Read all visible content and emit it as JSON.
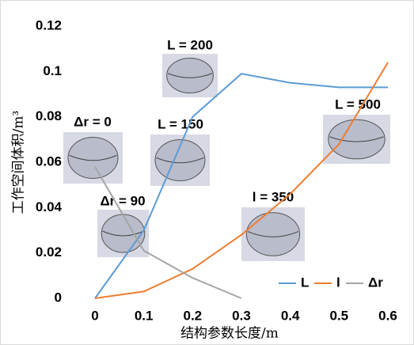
{
  "chart_data": {
    "type": "line",
    "x_label": "结构参数长度/m",
    "y_label": "工作空间体积/m³",
    "x": [
      0,
      0.1,
      0.2,
      0.3,
      0.4,
      0.5,
      0.6
    ],
    "series": [
      {
        "name": "L",
        "color": "#5b9bd5",
        "values": [
          0,
          0.03,
          0.08,
          0.099,
          0.095,
          0.093,
          0.093
        ]
      },
      {
        "name": "l",
        "color": "#ed7d31",
        "values": [
          0,
          0.003,
          0.013,
          0.028,
          0.046,
          0.068,
          0.104
        ]
      },
      {
        "name": "Δr",
        "color": "#a5a5a5",
        "values": [
          0.058,
          0.021,
          0.009,
          0,
          null,
          null,
          null
        ]
      }
    ],
    "xlim": [
      0,
      0.6
    ],
    "xticks": [
      0,
      0.1,
      0.2,
      0.3,
      0.4,
      0.5,
      0.6
    ],
    "ylim": [
      0,
      0.12
    ],
    "yticks": [
      0,
      0.02,
      0.04,
      0.06,
      0.08,
      0.1,
      0.12
    ],
    "grid": false,
    "legend": "bottom-right",
    "annotations": [
      "L = 200",
      "Δr = 0",
      "L = 150",
      "Δr = 90",
      "l = 350",
      "L = 500"
    ]
  }
}
